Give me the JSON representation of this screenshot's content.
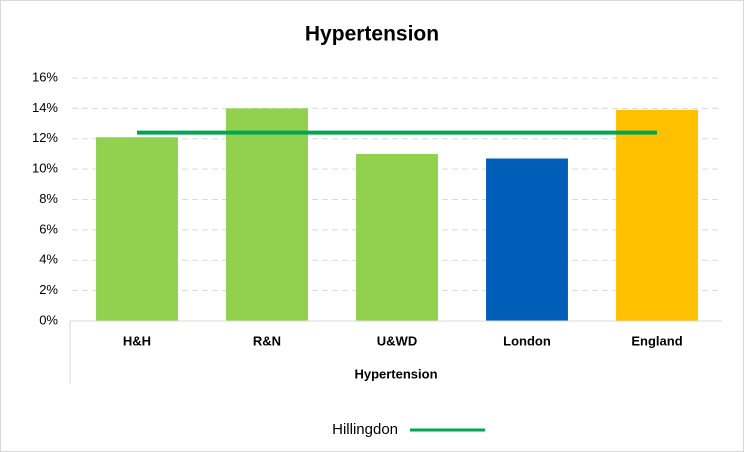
{
  "chart_data": {
    "type": "bar",
    "title": "Hypertension",
    "x_label": "Hypertension",
    "categories": [
      "H&H",
      "R&N",
      "U&WD",
      "London",
      "England"
    ],
    "values": [
      12.1,
      14.0,
      11.0,
      10.7,
      13.9
    ],
    "colors": [
      "#92d050",
      "#92d050",
      "#92d050",
      "#005eb8",
      "#ffc000"
    ],
    "series": [
      {
        "name": "Hillingdon",
        "type": "line",
        "color": "#00a651",
        "values": [
          12.4,
          12.4,
          12.4,
          12.4,
          12.4
        ]
      }
    ],
    "ylim": [
      0,
      16
    ],
    "yticks": [
      {
        "value": 0,
        "label": "0%"
      },
      {
        "value": 2,
        "label": "2%"
      },
      {
        "value": 4,
        "label": "4%"
      },
      {
        "value": 6,
        "label": "6%"
      },
      {
        "value": 8,
        "label": "8%"
      },
      {
        "value": 10,
        "label": "10%"
      },
      {
        "value": 12,
        "label": "12%"
      },
      {
        "value": 14,
        "label": "14%"
      },
      {
        "value": 16,
        "label": "16%"
      }
    ],
    "grid": true,
    "legend": "bottom"
  }
}
